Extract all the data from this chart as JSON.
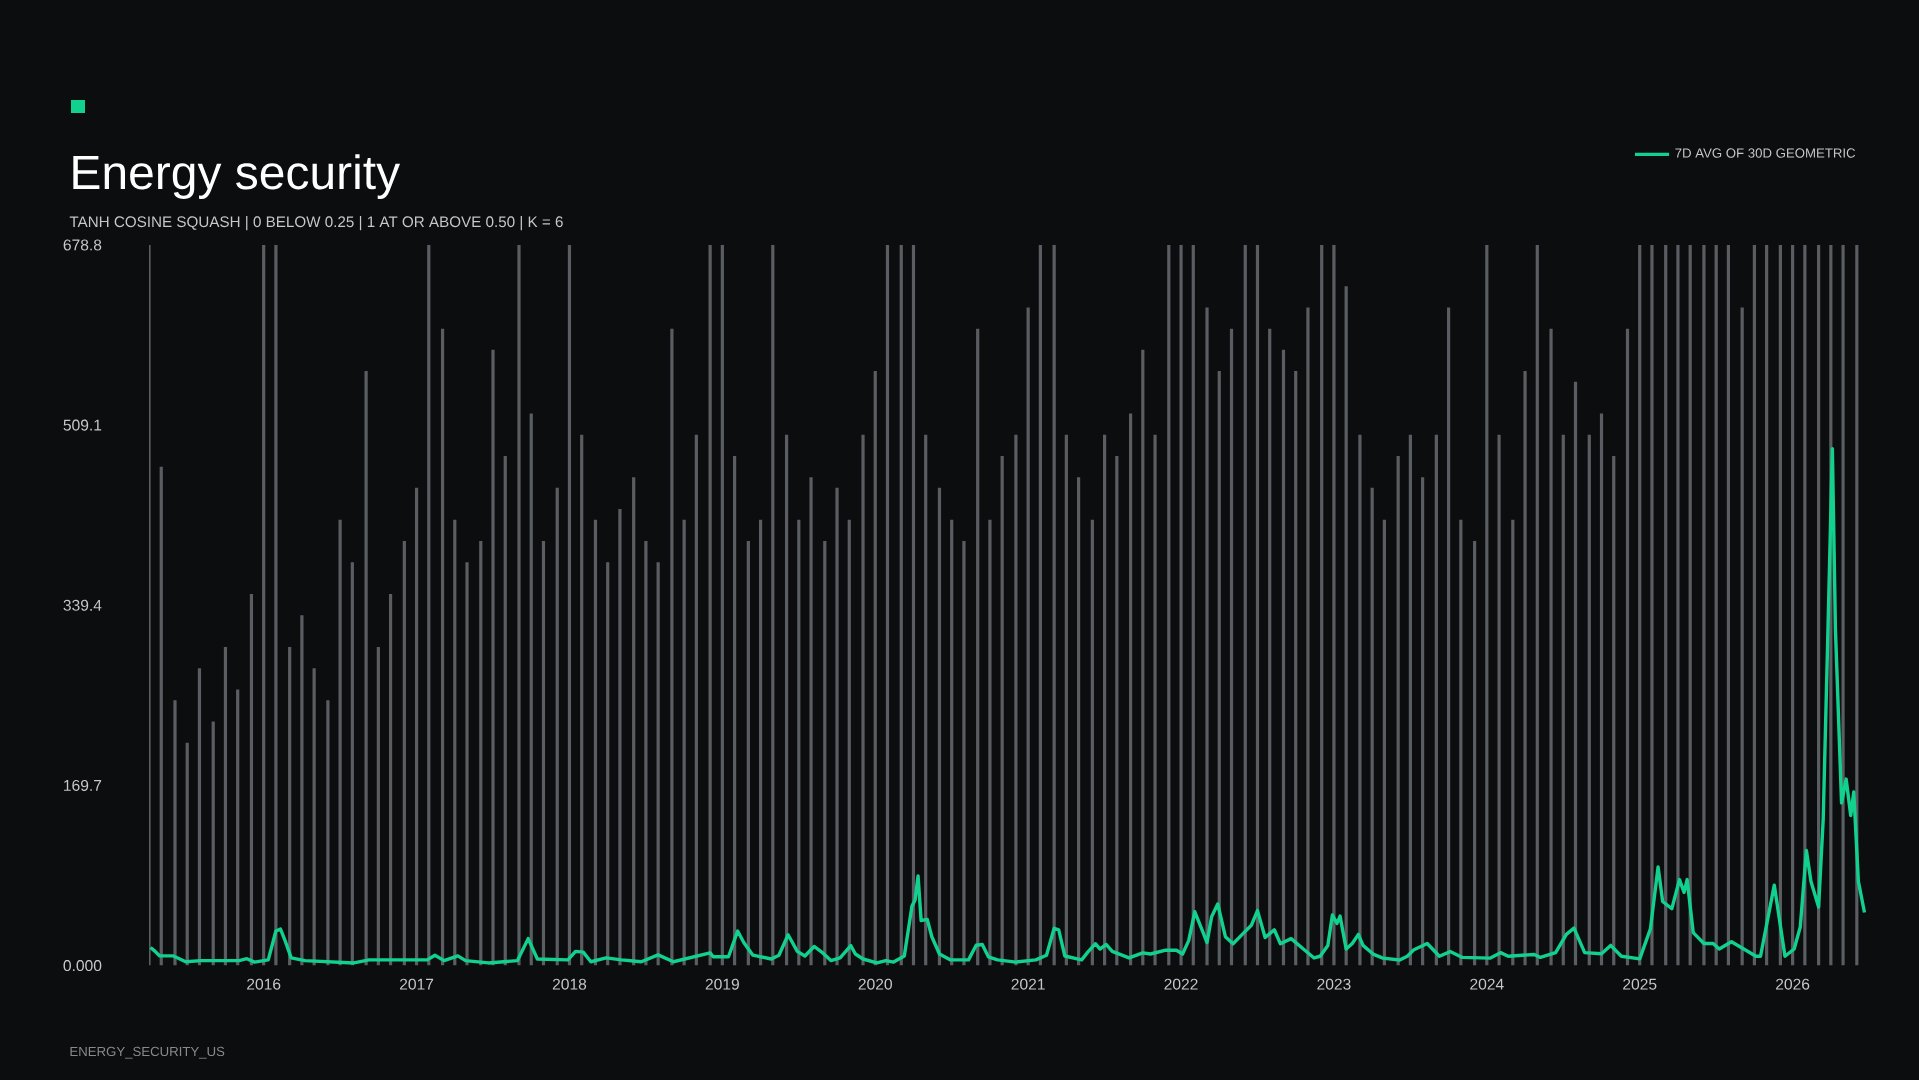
{
  "chart_data": {
    "type": "line",
    "title": "Energy security",
    "subtitle": "TANH COSINE SQUASH | 0 BELOW 0.25 | 1 AT OR ABOVE 0.50 | K = 6",
    "annotations": [
      "ENERGY_SECURITY_US"
    ],
    "xlim": [
      2015.25,
      2026.48
    ],
    "ylim": [
      0,
      678.8
    ],
    "xticks": [
      2016,
      2017,
      2018,
      2019,
      2020,
      2021,
      2022,
      2023,
      2024,
      2025,
      2026
    ],
    "yticks": [
      {
        "value": 0,
        "label": "0.000"
      },
      169.7,
      339.4,
      509.1,
      678.8
    ],
    "legend": "top right",
    "marker": "none",
    "series": [
      {
        "type": "bar",
        "color": "#5a5e63",
        "x": [
          2015.25,
          2015.33,
          2015.42,
          2015.5,
          2015.58,
          2015.67,
          2015.75,
          2015.83,
          2015.92,
          2016.0,
          2016.08,
          2016.17,
          2016.25,
          2016.33,
          2016.42,
          2016.5,
          2016.58,
          2016.67,
          2016.75,
          2016.83,
          2016.92,
          2017.0,
          2017.08,
          2017.17,
          2017.25,
          2017.33,
          2017.42,
          2017.5,
          2017.58,
          2017.67,
          2017.75,
          2017.83,
          2017.92,
          2018.0,
          2018.08,
          2018.17,
          2018.25,
          2018.33,
          2018.42,
          2018.5,
          2018.58,
          2018.67,
          2018.75,
          2018.83,
          2018.92,
          2019.0,
          2019.08,
          2019.17,
          2019.25,
          2019.33,
          2019.42,
          2019.5,
          2019.58,
          2019.67,
          2019.75,
          2019.83,
          2019.92,
          2020.0,
          2020.08,
          2020.17,
          2020.25,
          2020.33,
          2020.42,
          2020.5,
          2020.58,
          2020.67,
          2020.75,
          2020.83,
          2020.92,
          2021.0,
          2021.08,
          2021.17,
          2021.25,
          2021.33,
          2021.42,
          2021.5,
          2021.58,
          2021.67,
          2021.75,
          2021.83,
          2021.92,
          2022.0,
          2022.08,
          2022.17,
          2022.25,
          2022.33,
          2022.42,
          2022.5,
          2022.58,
          2022.67,
          2022.75,
          2022.83,
          2022.92,
          2023.0,
          2023.08,
          2023.17,
          2023.25,
          2023.33,
          2023.42,
          2023.5,
          2023.58,
          2023.67,
          2023.75,
          2023.83,
          2023.92,
          2024.0,
          2024.08,
          2024.17,
          2024.25,
          2024.33,
          2024.42,
          2024.5,
          2024.58,
          2024.67,
          2024.75,
          2024.83,
          2024.92,
          2025.0,
          2025.08,
          2025.17,
          2025.25,
          2025.33,
          2025.42,
          2025.5,
          2025.58,
          2025.67,
          2025.75,
          2025.83,
          2025.92,
          2026.0,
          2026.08,
          2026.17,
          2026.25,
          2026.33,
          2026.42
        ],
        "values": [
          678.8,
          470,
          250,
          210,
          280,
          230,
          300,
          260,
          350,
          678.8,
          678.8,
          300,
          330,
          280,
          250,
          420,
          380,
          560,
          300,
          350,
          400,
          450,
          678.8,
          600,
          420,
          380,
          400,
          580,
          480,
          678.8,
          520,
          400,
          450,
          678.8,
          500,
          420,
          380,
          430,
          460,
          400,
          380,
          600,
          420,
          500,
          678.8,
          678.8,
          480,
          400,
          420,
          678.8,
          500,
          420,
          460,
          400,
          450,
          420,
          500,
          560,
          678.8,
          678.8,
          678.8,
          500,
          450,
          420,
          400,
          600,
          420,
          480,
          500,
          620,
          678.8,
          678.8,
          500,
          460,
          420,
          500,
          480,
          520,
          580,
          500,
          678.8,
          678.8,
          678.8,
          620,
          560,
          600,
          678.8,
          678.8,
          600,
          580,
          560,
          620,
          678.8,
          678.8,
          640,
          500,
          450,
          420,
          480,
          500,
          460,
          500,
          620,
          420,
          400,
          678.8,
          500,
          420,
          560,
          678.8,
          600,
          500,
          550,
          500,
          520,
          480,
          600,
          678.8,
          678.8,
          678.8,
          678.8,
          678.8,
          678.8,
          678.8,
          678.8,
          620,
          678.8,
          678.8,
          678.8,
          678.8,
          678.8,
          678.8,
          678.8,
          678.8,
          678.8
        ]
      },
      {
        "name": "7D AVG OF 30D GEOMETRIC",
        "color": "#12d18e",
        "x": [
          2015.26,
          2015.29,
          2015.32,
          2015.41,
          2015.49,
          2015.59,
          2015.84,
          2015.89,
          2015.94,
          2016.03,
          2016.08,
          2016.11,
          2016.14,
          2016.18,
          2016.27,
          2016.59,
          2016.69,
          2017.07,
          2017.12,
          2017.18,
          2017.27,
          2017.32,
          2017.47,
          2017.66,
          2017.73,
          2017.79,
          2017.99,
          2018.04,
          2018.09,
          2018.14,
          2018.24,
          2018.34,
          2018.47,
          2018.58,
          2018.68,
          2018.92,
          2018.94,
          2019.04,
          2019.1,
          2019.14,
          2019.2,
          2019.32,
          2019.37,
          2019.43,
          2019.49,
          2019.54,
          2019.6,
          2019.65,
          2019.71,
          2019.77,
          2019.84,
          2019.87,
          2019.92,
          2020.01,
          2020.07,
          2020.12,
          2020.19,
          2020.24,
          2020.26,
          2020.28,
          2020.3,
          2020.34,
          2020.37,
          2020.42,
          2020.49,
          2020.61,
          2020.66,
          2020.7,
          2020.74,
          2020.8,
          2020.92,
          2021.05,
          2021.12,
          2021.17,
          2021.2,
          2021.24,
          2021.35,
          2021.39,
          2021.44,
          2021.47,
          2021.51,
          2021.55,
          2021.66,
          2021.75,
          2021.8,
          2021.9,
          2021.97,
          2022.01,
          2022.05,
          2022.09,
          2022.14,
          2022.17,
          2022.2,
          2022.24,
          2022.29,
          2022.34,
          2022.41,
          2022.46,
          2022.5,
          2022.55,
          2022.61,
          2022.65,
          2022.72,
          2022.8,
          2022.87,
          2022.91,
          2022.96,
          2022.99,
          2023.02,
          2023.04,
          2023.08,
          2023.12,
          2023.16,
          2023.19,
          2023.26,
          2023.32,
          2023.43,
          2023.48,
          2023.52,
          2023.61,
          2023.69,
          2023.76,
          2023.84,
          2024.02,
          2024.09,
          2024.14,
          2024.31,
          2024.35,
          2024.45,
          2024.52,
          2024.57,
          2024.64,
          2024.75,
          2024.81,
          2024.88,
          2025.0,
          2025.07,
          2025.12,
          2025.15,
          2025.21,
          2025.26,
          2025.29,
          2025.31,
          2025.35,
          2025.42,
          2025.48,
          2025.52,
          2025.6,
          2025.7,
          2025.76,
          2025.79,
          2025.88,
          2025.95,
          2026.01,
          2026.05,
          2026.09,
          2026.12,
          2026.17,
          2026.2,
          2026.23,
          2026.26,
          2026.28,
          2026.32,
          2026.35,
          2026.38,
          2026.4,
          2026.43,
          2026.47
        ],
        "values": [
          17,
          13.4,
          9.1,
          9.1,
          3.6,
          4.7,
          4.7,
          6.5,
          3.3,
          5.4,
          32.6,
          34.4,
          23.5,
          7.2,
          4.7,
          2.5,
          5.4,
          5.4,
          9.8,
          4.7,
          9.1,
          4.7,
          2.5,
          4.7,
          25.4,
          6.2,
          5.4,
          13.4,
          12.7,
          3.6,
          7.2,
          5.4,
          3.6,
          10.1,
          3.6,
          12,
          8.3,
          8.3,
          32.6,
          21.7,
          9.8,
          6.2,
          9.8,
          29,
          13.4,
          9,
          18,
          12.7,
          4.7,
          7.2,
          18.8,
          10.9,
          6.2,
          2.5,
          4.7,
          3.3,
          9,
          56,
          61.6,
          84.4,
          42.4,
          43.5,
          27.2,
          10.9,
          5.4,
          5.4,
          19.2,
          19.9,
          8.3,
          5.4,
          3.3,
          5.4,
          9.8,
          35.1,
          33.7,
          9,
          5.4,
          12.7,
          20.6,
          15.6,
          19.9,
          13.4,
          7.2,
          12,
          10.9,
          14.5,
          14.5,
          10.9,
          23.5,
          50.7,
          32.6,
          21.7,
          46,
          58,
          27.2,
          20.6,
          30.8,
          38,
          51.8,
          26.4,
          33.7,
          20.6,
          25.4,
          15.6,
          7.2,
          8.8,
          19,
          47.6,
          39.7,
          46.6,
          15.6,
          20.8,
          29.4,
          19,
          10.5,
          7,
          5.3,
          8.8,
          14.6,
          20.8,
          8.8,
          13.2,
          7.7,
          7,
          12.2,
          8.8,
          10.5,
          7.7,
          12.2,
          29.4,
          35.3,
          12.2,
          11.2,
          19,
          8.8,
          6.3,
          34.6,
          93,
          60.4,
          53.5,
          81,
          69,
          81,
          31,
          20.8,
          20.8,
          15.6,
          22.5,
          13.9,
          8.8,
          8.8,
          75.8,
          8.8,
          15.6,
          36.3,
          108.5,
          79.3,
          55.2,
          137.8,
          309.8,
          487,
          316.7,
          153.3,
          175.7,
          141.3,
          163.6,
          79.3,
          50
        ]
      }
    ]
  }
}
